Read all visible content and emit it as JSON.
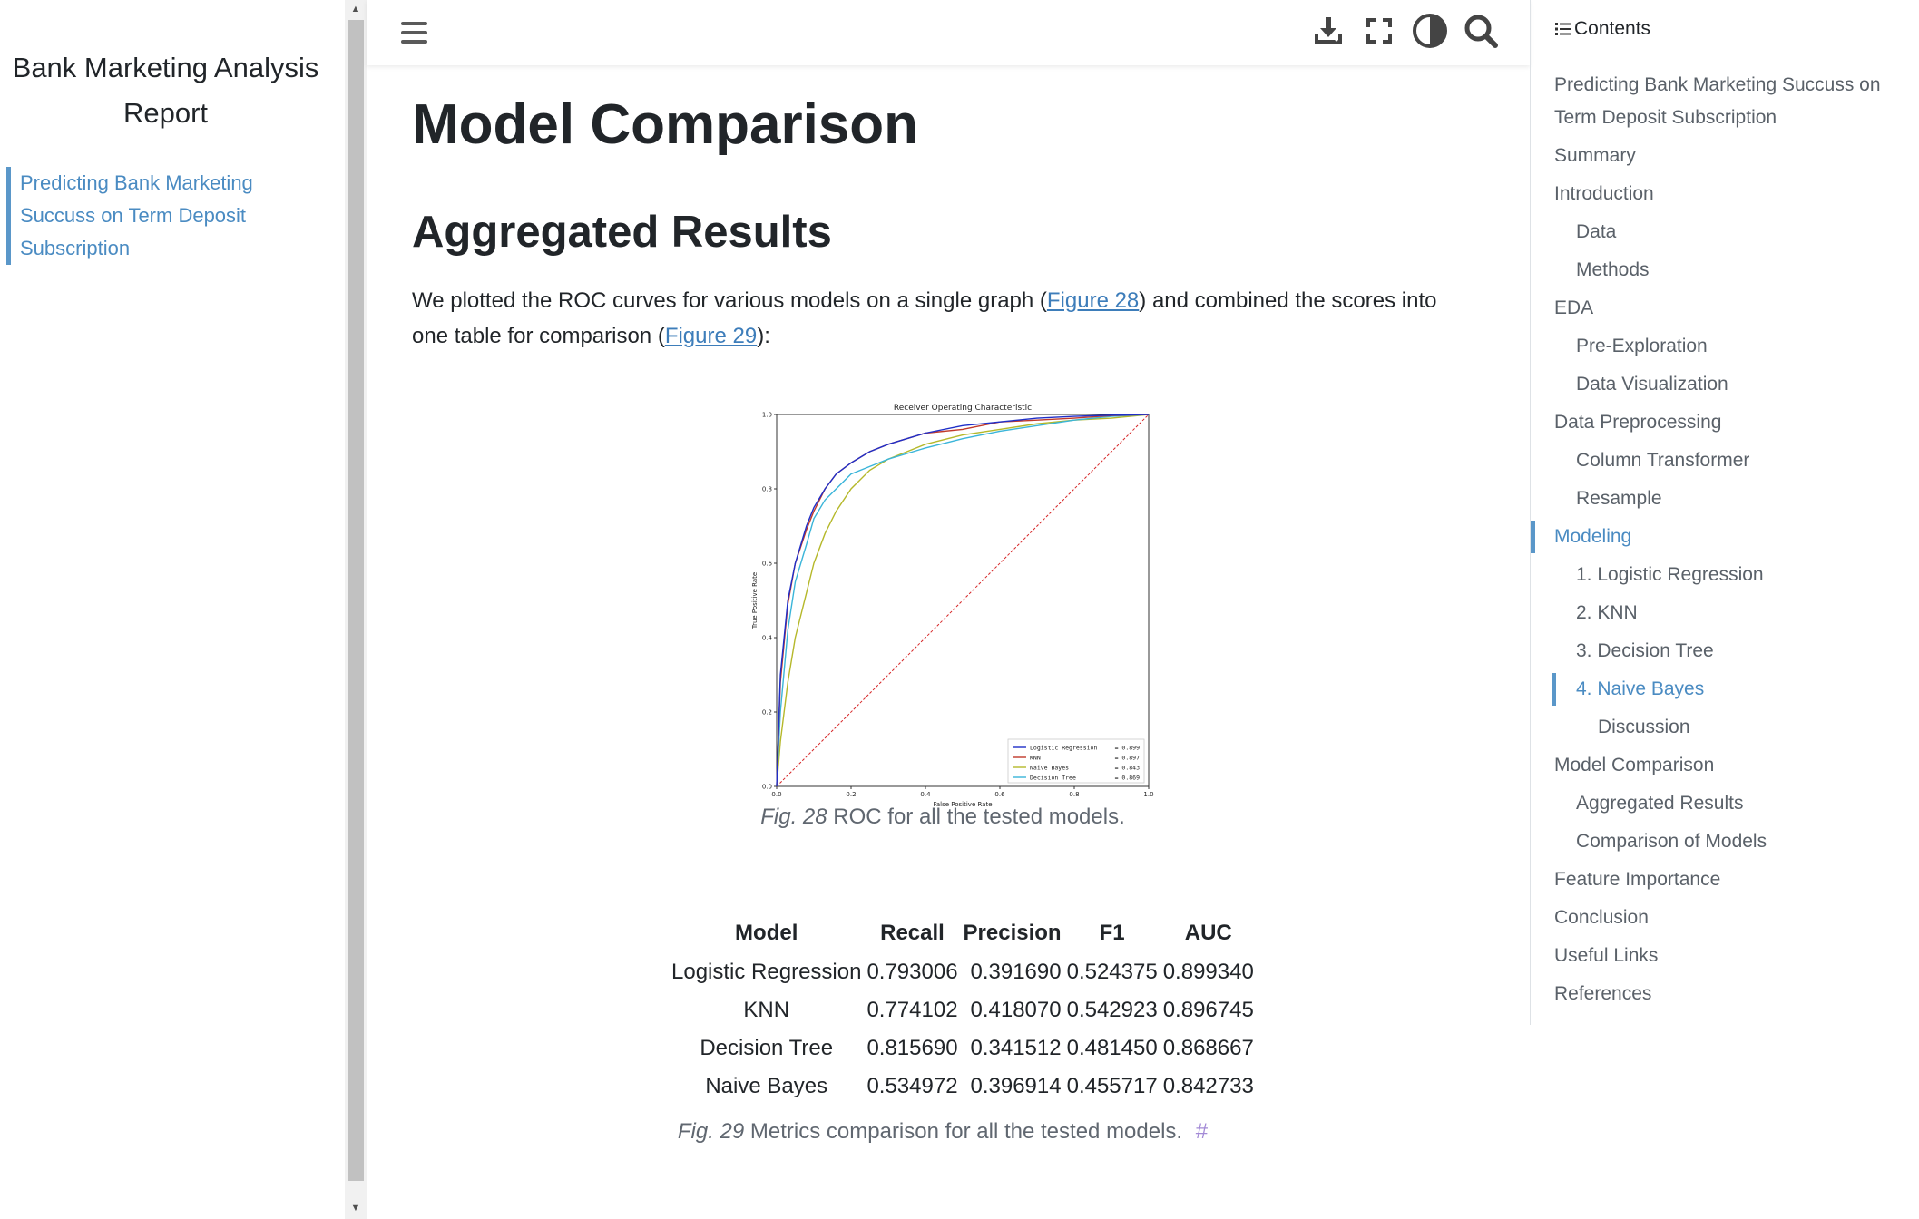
{
  "left_sidebar": {
    "site_title_line1": "Bank Marketing Analysis",
    "site_title_line2": "Report",
    "nav_items": [
      "Predicting Bank Marketing",
      "Succuss on Term Deposit",
      "Subscription"
    ]
  },
  "header": {
    "icons": [
      "menu-icon",
      "download-icon",
      "fullscreen-icon",
      "theme-toggle-icon",
      "search-icon"
    ]
  },
  "main": {
    "page_title": "Model Comparison",
    "section_heading": "Aggregated Results",
    "intro": {
      "text_before_fig28": "We plotted the ROC curves for various models on a single graph (",
      "fig28_link": "Figure 28",
      "text_between": ") and combined the scores into one table for comparison (",
      "fig29_link": "Figure 29",
      "text_after": "):"
    },
    "fig28_caption_num": "Fig. 28",
    "fig28_caption_text": "ROC for all the tested models.",
    "fig29_caption_num": "Fig. 29",
    "fig29_caption_text": "Metrics comparison for all the tested models.",
    "fig29_anchor": "#"
  },
  "chart_data": {
    "type": "line",
    "title": "Receiver Operating Characteristic",
    "xlabel": "False Positive Rate",
    "ylabel": "True Positive Rate",
    "xlim": [
      0.0,
      1.0
    ],
    "ylim": [
      0.0,
      1.0
    ],
    "xticks": [
      "0.0",
      "0.2",
      "0.4",
      "0.6",
      "0.8",
      "1.0"
    ],
    "yticks": [
      "0.0",
      "0.2",
      "0.4",
      "0.6",
      "0.8",
      "1.0"
    ],
    "legend_position": "bottom-right",
    "series": [
      {
        "name": "Logistic Regression",
        "legend_value": "= 0.899",
        "color": "#1f2fc8",
        "x": [
          0,
          0.01,
          0.03,
          0.05,
          0.08,
          0.1,
          0.13,
          0.16,
          0.2,
          0.25,
          0.3,
          0.4,
          0.5,
          0.6,
          0.7,
          0.8,
          0.9,
          1.0
        ],
        "y": [
          0,
          0.3,
          0.5,
          0.6,
          0.7,
          0.75,
          0.8,
          0.84,
          0.87,
          0.9,
          0.92,
          0.95,
          0.97,
          0.98,
          0.99,
          0.995,
          0.998,
          1.0
        ]
      },
      {
        "name": "KNN",
        "legend_value": "= 0.897",
        "color": "#c0392b",
        "x": [
          0,
          0.01,
          0.03,
          0.05,
          0.08,
          0.1,
          0.13,
          0.16,
          0.2,
          0.25,
          0.3,
          0.4,
          0.5,
          0.6,
          0.7,
          0.8,
          0.9,
          1.0
        ],
        "y": [
          0,
          0.28,
          0.49,
          0.6,
          0.69,
          0.74,
          0.8,
          0.84,
          0.87,
          0.9,
          0.92,
          0.95,
          0.96,
          0.98,
          0.985,
          0.99,
          0.997,
          1.0
        ]
      },
      {
        "name": "Naive Bayes",
        "legend_value": "= 0.843",
        "color": "#b5b82a",
        "x": [
          0,
          0.01,
          0.03,
          0.05,
          0.08,
          0.1,
          0.13,
          0.16,
          0.2,
          0.25,
          0.3,
          0.4,
          0.5,
          0.6,
          0.7,
          0.8,
          0.9,
          1.0
        ],
        "y": [
          0,
          0.12,
          0.28,
          0.4,
          0.52,
          0.6,
          0.68,
          0.74,
          0.8,
          0.85,
          0.88,
          0.92,
          0.945,
          0.96,
          0.975,
          0.985,
          0.99,
          1.0
        ]
      },
      {
        "name": "Decision Tree",
        "legend_value": "= 0.869",
        "color": "#3ab5d9",
        "x": [
          0,
          0.01,
          0.03,
          0.05,
          0.08,
          0.1,
          0.13,
          0.16,
          0.2,
          0.25,
          0.3,
          0.4,
          0.5,
          0.6,
          0.7,
          0.8,
          0.9,
          1.0
        ],
        "y": [
          0,
          0.2,
          0.42,
          0.55,
          0.65,
          0.72,
          0.77,
          0.8,
          0.84,
          0.86,
          0.88,
          0.91,
          0.935,
          0.955,
          0.97,
          0.985,
          0.995,
          1.0
        ]
      }
    ],
    "reference_line": {
      "x": [
        0,
        1
      ],
      "y": [
        0,
        1
      ],
      "color": "#d62728",
      "style": "dashed"
    }
  },
  "table": {
    "headers": [
      "Model",
      "Recall",
      "Precision",
      "F1",
      "AUC"
    ],
    "rows": [
      [
        "Logistic Regression",
        "0.793006",
        "0.391690",
        "0.524375",
        "0.899340"
      ],
      [
        "KNN",
        "0.774102",
        "0.418070",
        "0.542923",
        "0.896745"
      ],
      [
        "Decision Tree",
        "0.815690",
        "0.341512",
        "0.481450",
        "0.868667"
      ],
      [
        "Naive Bayes",
        "0.534972",
        "0.396914",
        "0.455717",
        "0.842733"
      ]
    ]
  },
  "toc": {
    "header": "Contents",
    "items": [
      {
        "label": "Predicting Bank Marketing Succuss on Term Deposit Subscription",
        "level": 1
      },
      {
        "label": "Summary",
        "level": 1
      },
      {
        "label": "Introduction",
        "level": 1
      },
      {
        "label": "Data",
        "level": 2
      },
      {
        "label": "Methods",
        "level": 2
      },
      {
        "label": "EDA",
        "level": 1
      },
      {
        "label": "Pre-Exploration",
        "level": 2
      },
      {
        "label": "Data Visualization",
        "level": 2
      },
      {
        "label": "Data Preprocessing",
        "level": 1
      },
      {
        "label": "Column Transformer",
        "level": 2
      },
      {
        "label": "Resample",
        "level": 2
      },
      {
        "label": "Modeling",
        "level": 1,
        "active": true
      },
      {
        "label": "1. Logistic Regression",
        "level": 2
      },
      {
        "label": "2. KNN",
        "level": 2
      },
      {
        "label": "3. Decision Tree",
        "level": 2
      },
      {
        "label": "4. Naive Bayes",
        "level": 2,
        "active": true
      },
      {
        "label": "Discussion",
        "level": 3
      },
      {
        "label": "Model Comparison",
        "level": 1
      },
      {
        "label": "Aggregated Results",
        "level": 2
      },
      {
        "label": "Comparison of Models",
        "level": 2
      },
      {
        "label": "Feature Importance",
        "level": 1
      },
      {
        "label": "Conclusion",
        "level": 1
      },
      {
        "label": "Useful Links",
        "level": 1
      },
      {
        "label": "References",
        "level": 1
      }
    ]
  },
  "colors": {
    "link": "#3d7dba",
    "accent": "#5a97c9",
    "text": "#212529",
    "muted": "#5a6169"
  }
}
